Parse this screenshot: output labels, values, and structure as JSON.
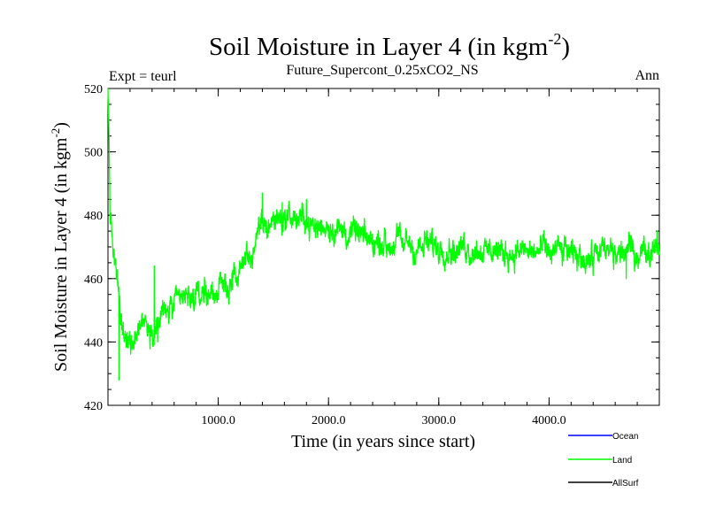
{
  "chart_data": {
    "type": "line",
    "title": "Soil Moisture in Layer 4 (in kgm",
    "title_superscript": "-2",
    "title_close": ")",
    "subtitle": "Future_Supercont_0.25xCO2_NS",
    "left_note": "Expt = teurl",
    "right_note": "Ann",
    "xlabel": "Time (in years since start)",
    "ylabel": "Soil Moisture in Layer 4 (in kgm",
    "ylabel_superscript": "-2",
    "ylabel_close": ")",
    "xlim": [
      0,
      5000
    ],
    "ylim": [
      420,
      520
    ],
    "x_ticks": [
      {
        "value": 1000,
        "label": "1000.0"
      },
      {
        "value": 2000,
        "label": "2000.0"
      },
      {
        "value": 3000,
        "label": "3000.0"
      },
      {
        "value": 4000,
        "label": "4000.0"
      }
    ],
    "y_ticks": [
      {
        "value": 420,
        "label": "420"
      },
      {
        "value": 440,
        "label": "440"
      },
      {
        "value": 460,
        "label": "460"
      },
      {
        "value": 480,
        "label": "480"
      },
      {
        "value": 500,
        "label": "500"
      },
      {
        "value": 520,
        "label": "520"
      }
    ],
    "x_minor_step": 200,
    "y_minor_step": 5,
    "noise_amplitude": 4.5,
    "legend_placement": "bottom-right",
    "series": [
      {
        "name": "Land",
        "color": "#00ff00",
        "anchors": [
          [
            0,
            520
          ],
          [
            10,
            505
          ],
          [
            20,
            480
          ],
          [
            40,
            472
          ],
          [
            60,
            465
          ],
          [
            80,
            458
          ],
          [
            100,
            452
          ],
          [
            130,
            443
          ],
          [
            160,
            437
          ],
          [
            200,
            440
          ],
          [
            250,
            443
          ],
          [
            300,
            445
          ],
          [
            350,
            447
          ],
          [
            400,
            445
          ],
          [
            450,
            447
          ],
          [
            500,
            449
          ],
          [
            600,
            451
          ],
          [
            700,
            453
          ],
          [
            800,
            455
          ],
          [
            900,
            455
          ],
          [
            1000,
            456
          ],
          [
            1100,
            458
          ],
          [
            1200,
            462
          ],
          [
            1300,
            468
          ],
          [
            1400,
            476
          ],
          [
            1500,
            479
          ],
          [
            1600,
            479
          ],
          [
            1700,
            479
          ],
          [
            1800,
            478
          ],
          [
            1900,
            477
          ],
          [
            2000,
            476
          ],
          [
            2200,
            474
          ],
          [
            2400,
            472
          ],
          [
            2600,
            471
          ],
          [
            2800,
            470
          ],
          [
            3000,
            470
          ],
          [
            3300,
            470
          ],
          [
            3600,
            469
          ],
          [
            4000,
            468
          ],
          [
            4500,
            467
          ],
          [
            5000,
            470
          ]
        ],
        "spikes": [
          [
            100,
            428
          ],
          [
            420,
            464
          ],
          [
            450,
            440
          ],
          [
            1400,
            487
          ],
          [
            1580,
            484
          ],
          [
            1800,
            485
          ],
          [
            4400,
            461
          ],
          [
            4700,
            460
          ],
          [
            4980,
            475
          ]
        ]
      },
      {
        "name": "Ocean",
        "color": "#0000ff",
        "anchors": [],
        "spikes": []
      },
      {
        "name": "AllSurf",
        "color": "#000000",
        "anchors": [],
        "spikes": []
      }
    ]
  },
  "legend": {
    "items": [
      {
        "label": "Ocean",
        "color": "#0000ff"
      },
      {
        "label": "Land",
        "color": "#00ff00"
      },
      {
        "label": "AllSurf",
        "color": "#000000"
      }
    ]
  }
}
